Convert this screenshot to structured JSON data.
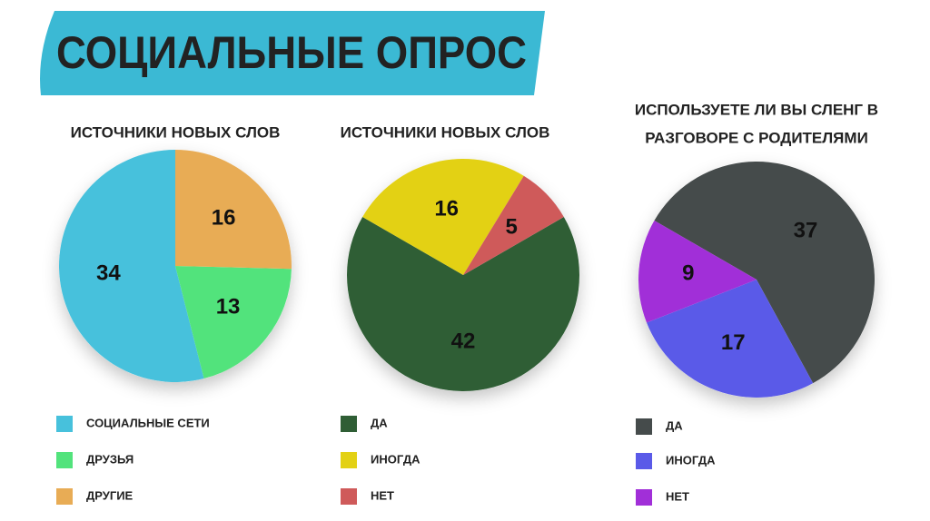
{
  "title": "СОЦИАЛЬНЫЕ ОПРОС",
  "chart_data": [
    {
      "type": "pie",
      "title": [
        "ИСТОЧНИКИ НОВЫХ СЛОВ"
      ],
      "categories": [
        "СОЦИАЛЬНЫЕ СЕТИ",
        "ДРУЗЬЯ",
        "ДРУГИЕ"
      ],
      "values": [
        34,
        13,
        16
      ],
      "colors": [
        "#47c1dc",
        "#52e37c",
        "#e8ac55"
      ]
    },
    {
      "type": "pie",
      "title": [
        "ИСТОЧНИКИ НОВЫХ СЛОВ"
      ],
      "categories": [
        "ДА",
        "ИНОГДА",
        "НЕТ"
      ],
      "values": [
        42,
        16,
        5
      ],
      "colors": [
        "#2f5e35",
        "#e3d114",
        "#cf5a5a"
      ]
    },
    {
      "type": "pie",
      "title": [
        "ИСПОЛЬЗУЕТЕ ЛИ ВЫ СЛЕНГ В",
        "РАЗГОВОРЕ С РОДИТЕЛЯМИ"
      ],
      "categories": [
        "ДА",
        "ИНОГДА",
        "НЕТ"
      ],
      "values": [
        37,
        17,
        9
      ],
      "colors": [
        "#454b4b",
        "#5a5ae8",
        "#a12fd8"
      ]
    }
  ]
}
